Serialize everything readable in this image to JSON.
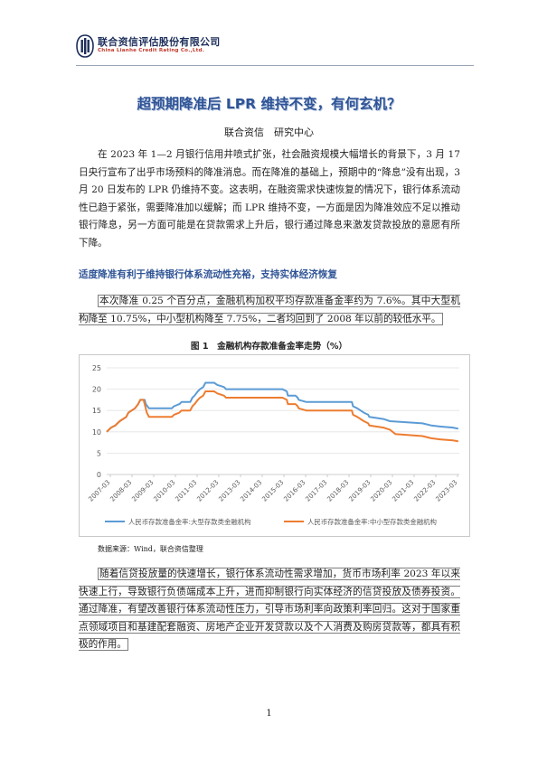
{
  "header": {
    "company_cn": "联合资信评估股份有限公司",
    "company_en": "China Lianhe Credit Rating Co.,Ltd."
  },
  "title": "超预期降准后 LPR 维持不变，有何玄机？",
  "byline": "联合资信　研究中心",
  "paragraph1": "在 2023 年 1—2 月银行信用井喷式扩张，社会融资规模大幅增长的背景下，3 月 17 日央行宣布了出乎市场预料的降准消息。而在降准的基础上，预期中的“降息”没有出现，3 月 20 日发布的 LPR 仍维持不变。这表明，在融资需求快速恢复的情况下，银行体系流动性已趋于紧张，需要降准加以缓解；而 LPR 维持不变，一方面是因为降准效应不足以推动银行降息，另一方面可能是在贷款需求上升后，银行通过降息来激发贷款投放的意愿有所下降。",
  "section_heading": "适度降准有利于维持银行体系流动性充裕，支持实体经济恢复",
  "paragraph2": "本次降准 0.25 个百分点，金融机构加权平均存款准备金率约为 7.6%。其中大型机构降至 10.75%，中小型机构降至 7.75%，二者均回到了 2008 年以前的较低水平。",
  "figure_caption": "图 1　金融机构存款准备金率走势（%）",
  "source_note": "数据来源：Wind，联合资信整理",
  "paragraph3": "随着信贷投放量的快速增长，银行体系流动性需求增加，货币市场利率 2023 年以来快速上行，导致银行负债端成本上升，进而抑制银行向实体经济的信贷投放及债券投资。通过降准，有望改善银行体系流动性压力，引导市场利率向政策利率回归。这对于国家重点领域项目和基建配套融资、房地产企业开发贷款以及个人消费及购房贷款等，都具有积极的作用。",
  "page_number": "1",
  "colors": {
    "brand": "#1c2e5a",
    "heading_blue": "#2f5496",
    "series_large": "#5b9bd5",
    "series_small": "#ed7d31"
  },
  "chart_data": {
    "type": "line",
    "title": "",
    "xlabel": "",
    "ylabel": "",
    "ylim": [
      0,
      25
    ],
    "yticks": [
      0,
      5,
      10,
      15,
      20,
      25
    ],
    "x_ticks": [
      "2007-03",
      "2008-03",
      "2009-03",
      "2010-03",
      "2011-03",
      "2012-03",
      "2013-03",
      "2014-03",
      "2015-03",
      "2016-03",
      "2017-03",
      "2018-03",
      "2019-03",
      "2020-03",
      "2021-03",
      "2022-03",
      "2023-03"
    ],
    "x_range": [
      2007.0,
      2023.25
    ],
    "grid": true,
    "legend_position": "bottom",
    "series": [
      {
        "name": "人民币存款准备金率:大型存款类金融机构",
        "points": [
          [
            2007.0,
            10
          ],
          [
            2007.2,
            11
          ],
          [
            2007.4,
            11.5
          ],
          [
            2007.6,
            12.5
          ],
          [
            2007.9,
            13.5
          ],
          [
            2008.0,
            14.5
          ],
          [
            2008.3,
            15.5
          ],
          [
            2008.45,
            16.5
          ],
          [
            2008.55,
            17.5
          ],
          [
            2008.75,
            17.5
          ],
          [
            2008.8,
            16.5
          ],
          [
            2008.95,
            15.5
          ],
          [
            2009.0,
            15.5
          ],
          [
            2010.0,
            15.5
          ],
          [
            2010.1,
            16
          ],
          [
            2010.35,
            16.5
          ],
          [
            2010.45,
            17
          ],
          [
            2010.85,
            17
          ],
          [
            2010.95,
            18
          ],
          [
            2011.05,
            18.5
          ],
          [
            2011.2,
            19.5
          ],
          [
            2011.3,
            20
          ],
          [
            2011.45,
            20.5
          ],
          [
            2011.5,
            21
          ],
          [
            2011.55,
            21.5
          ],
          [
            2011.95,
            21.5
          ],
          [
            2012.1,
            21
          ],
          [
            2012.4,
            20.5
          ],
          [
            2012.5,
            20
          ],
          [
            2015.1,
            20
          ],
          [
            2015.3,
            19.5
          ],
          [
            2015.35,
            18.5
          ],
          [
            2015.7,
            18.5
          ],
          [
            2015.8,
            18
          ],
          [
            2015.85,
            17.5
          ],
          [
            2016.2,
            17
          ],
          [
            2018.3,
            17
          ],
          [
            2018.35,
            16
          ],
          [
            2018.55,
            15.5
          ],
          [
            2018.85,
            14.5
          ],
          [
            2019.05,
            14
          ],
          [
            2019.1,
            13.5
          ],
          [
            2019.75,
            13
          ],
          [
            2020.05,
            12.5
          ],
          [
            2021.55,
            12
          ],
          [
            2021.95,
            11.5
          ],
          [
            2022.35,
            11.25
          ],
          [
            2022.95,
            11
          ],
          [
            2023.2,
            10.75
          ]
        ]
      },
      {
        "name": "人民币存款准备金率:中小型存款类金融机构",
        "points": [
          [
            2007.0,
            10
          ],
          [
            2007.2,
            11
          ],
          [
            2007.4,
            11.5
          ],
          [
            2007.6,
            12.5
          ],
          [
            2007.9,
            13.5
          ],
          [
            2008.0,
            14.5
          ],
          [
            2008.3,
            15.5
          ],
          [
            2008.45,
            16.5
          ],
          [
            2008.55,
            17.5
          ],
          [
            2008.7,
            17.5
          ],
          [
            2008.75,
            16.5
          ],
          [
            2008.85,
            14.5
          ],
          [
            2008.95,
            13.5
          ],
          [
            2010.0,
            13.5
          ],
          [
            2010.1,
            14
          ],
          [
            2010.35,
            14.5
          ],
          [
            2010.45,
            15
          ],
          [
            2010.85,
            15
          ],
          [
            2010.95,
            16
          ],
          [
            2011.05,
            16.5
          ],
          [
            2011.2,
            17.5
          ],
          [
            2011.3,
            18
          ],
          [
            2011.45,
            18.5
          ],
          [
            2011.5,
            19
          ],
          [
            2011.55,
            19.5
          ],
          [
            2011.95,
            19.5
          ],
          [
            2012.1,
            19
          ],
          [
            2012.4,
            18.5
          ],
          [
            2012.5,
            18
          ],
          [
            2015.1,
            18
          ],
          [
            2015.3,
            17.5
          ],
          [
            2015.35,
            16.5
          ],
          [
            2015.7,
            16.5
          ],
          [
            2015.8,
            16
          ],
          [
            2015.85,
            15.5
          ],
          [
            2016.2,
            15
          ],
          [
            2018.3,
            15
          ],
          [
            2018.35,
            14
          ],
          [
            2018.55,
            13.5
          ],
          [
            2018.85,
            12.5
          ],
          [
            2019.05,
            12
          ],
          [
            2019.1,
            11.5
          ],
          [
            2019.75,
            11
          ],
          [
            2020.05,
            10.5
          ],
          [
            2020.3,
            9.5
          ],
          [
            2021.55,
            9
          ],
          [
            2021.95,
            8.5
          ],
          [
            2022.35,
            8.25
          ],
          [
            2022.95,
            8
          ],
          [
            2023.2,
            7.75
          ]
        ]
      }
    ]
  }
}
